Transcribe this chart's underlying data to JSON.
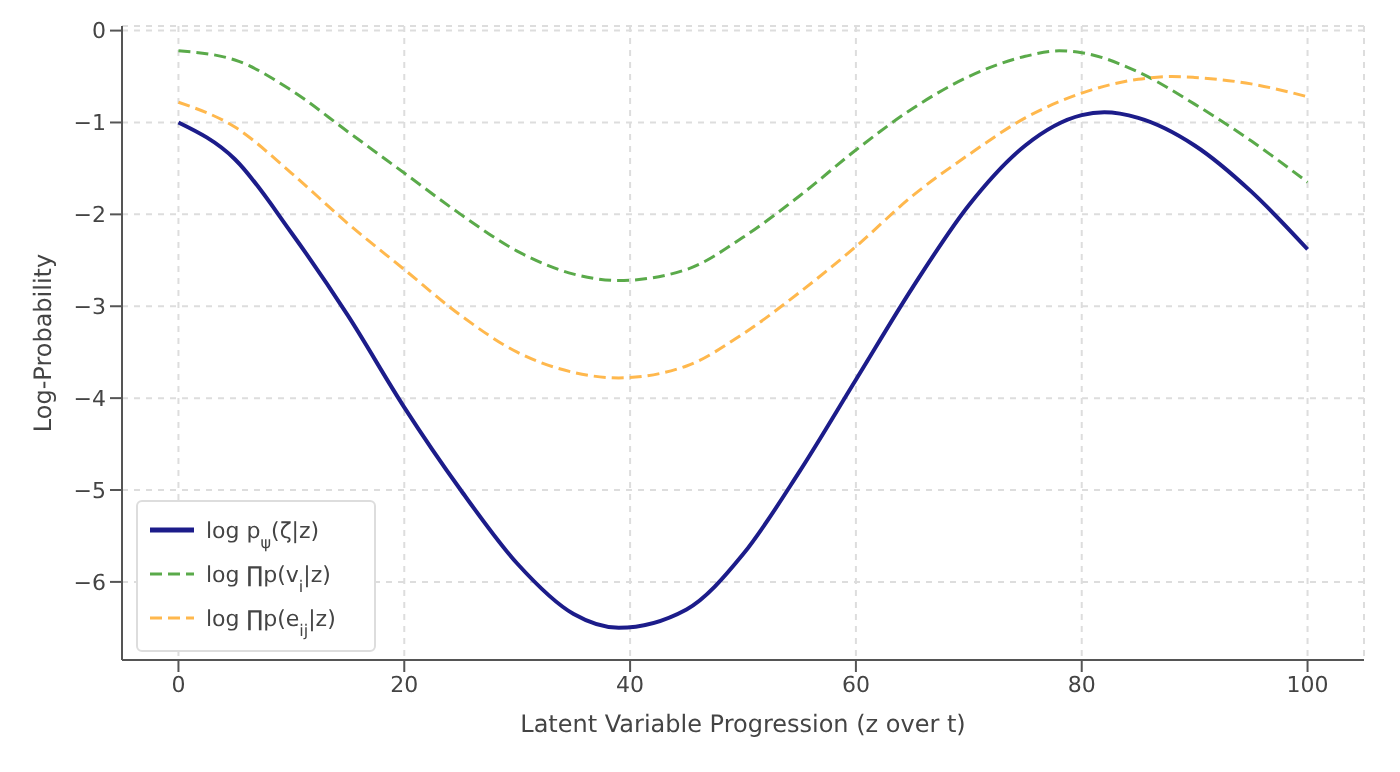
{
  "chart_data": {
    "type": "line",
    "xlabel": "Latent Variable Progression (z over t)",
    "ylabel": "Log-Probability",
    "xlim": [
      -5,
      105
    ],
    "xticks": [
      0,
      20,
      40,
      60,
      80,
      100
    ],
    "ylim": [
      -6.85,
      0.05
    ],
    "yticks": [
      0,
      -1,
      -2,
      -3,
      -4,
      -5,
      -6
    ],
    "grid": true,
    "legend": "bottom left",
    "marker": "none",
    "series": [
      {
        "name": "log p$_{ψ}$(ζ|z)",
        "color": "#1c1c8a",
        "line_style": "solid",
        "x": [
          0,
          5,
          10,
          15,
          20,
          25,
          30,
          35,
          39,
          45,
          50,
          55,
          60,
          65,
          70,
          75,
          80,
          82,
          85,
          90,
          95,
          100
        ],
        "values": [
          -1.0,
          -1.4,
          -2.2,
          -3.1,
          -4.1,
          -5.0,
          -5.8,
          -6.35,
          -6.5,
          -6.3,
          -5.7,
          -4.8,
          -3.8,
          -2.8,
          -1.9,
          -1.25,
          -0.92,
          -0.89,
          -0.95,
          -1.25,
          -1.75,
          -2.38
        ]
      },
      {
        "name": "log ∏p(v$_{i}$|z)",
        "color": "#5aaa4a",
        "line_style": "dashed",
        "x": [
          0,
          5,
          10,
          15,
          20,
          25,
          30,
          35,
          39,
          45,
          50,
          55,
          60,
          65,
          70,
          75,
          78,
          80,
          85,
          90,
          95,
          100
        ],
        "values": [
          -0.22,
          -0.32,
          -0.65,
          -1.1,
          -1.55,
          -2.0,
          -2.4,
          -2.65,
          -2.72,
          -2.6,
          -2.25,
          -1.8,
          -1.3,
          -0.85,
          -0.5,
          -0.28,
          -0.22,
          -0.24,
          -0.45,
          -0.8,
          -1.2,
          -1.65
        ]
      },
      {
        "name": "log ∏p(e$_{ij}$|z)",
        "color": "#ffb84d",
        "line_style": "dashed",
        "x": [
          0,
          5,
          10,
          15,
          20,
          25,
          30,
          35,
          39,
          45,
          50,
          55,
          60,
          65,
          70,
          75,
          80,
          85,
          88,
          90,
          95,
          100
        ],
        "values": [
          -0.78,
          -1.05,
          -1.55,
          -2.1,
          -2.6,
          -3.1,
          -3.5,
          -3.72,
          -3.78,
          -3.65,
          -3.3,
          -2.85,
          -2.35,
          -1.8,
          -1.35,
          -0.95,
          -0.68,
          -0.53,
          -0.5,
          -0.51,
          -0.58,
          -0.72
        ]
      }
    ]
  }
}
